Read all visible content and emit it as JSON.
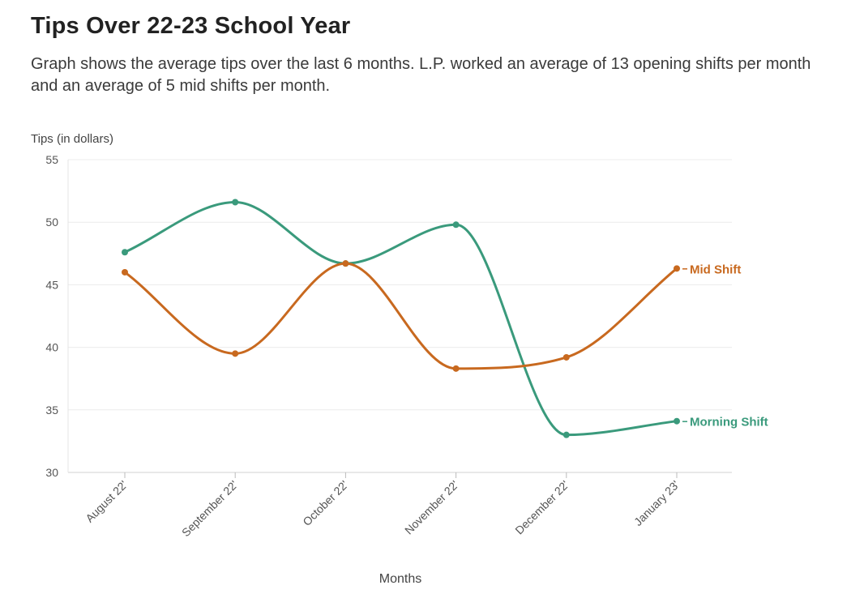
{
  "header": {
    "title": "Tips Over 22-23 School Year",
    "subtitle": "Graph shows the average tips over the last 6 months. L.P. worked an average of 13 opening shifts per month and an average of 5 mid shifts per month."
  },
  "chart_data": {
    "type": "line",
    "title": "Tips Over 22-23 School Year",
    "xlabel": "Months",
    "ylabel": "Tips (in dollars)",
    "categories": [
      "August 22'",
      "September 22'",
      "October 22'",
      "November 22'",
      "December 22'",
      "January 23'"
    ],
    "ylim": [
      30,
      55
    ],
    "yticks": [
      30,
      35,
      40,
      45,
      50,
      55
    ],
    "grid": true,
    "legend": "direct-labels-right",
    "series": [
      {
        "name": "Morning Shift",
        "color": "#3a9a7c",
        "values": [
          47.6,
          51.6,
          46.7,
          49.8,
          33.0,
          34.1
        ]
      },
      {
        "name": "Mid Shift",
        "color": "#c8691f",
        "values": [
          46.0,
          39.5,
          46.7,
          38.3,
          39.2,
          46.3
        ]
      }
    ]
  }
}
